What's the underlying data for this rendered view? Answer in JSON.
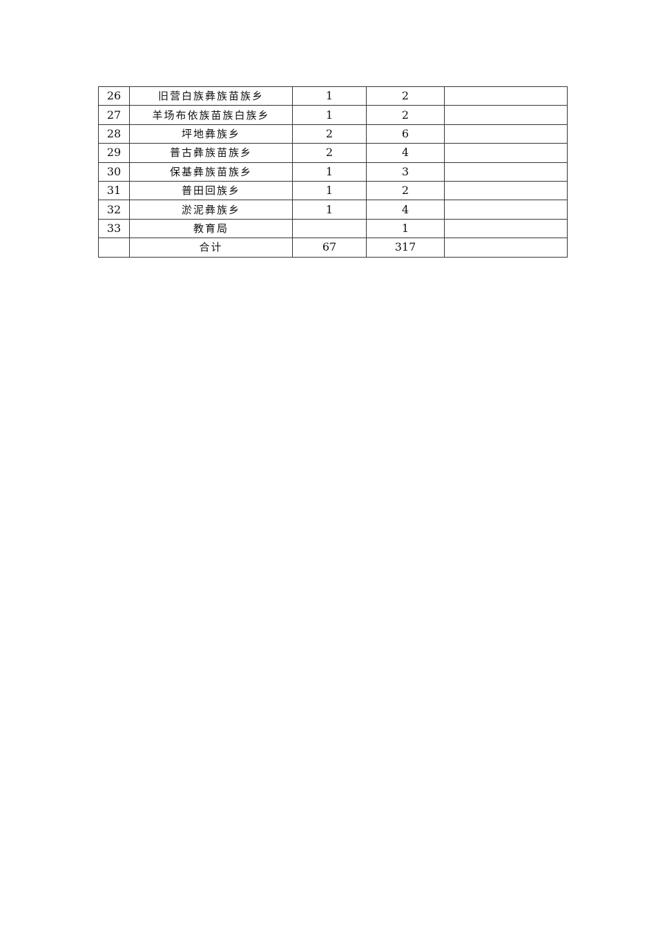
{
  "table": {
    "rows": [
      {
        "no": "26",
        "name": "旧营白族彝族苗族乡",
        "a": "1",
        "b": "2",
        "c": ""
      },
      {
        "no": "27",
        "name": "羊场布依族苗族白族乡",
        "a": "1",
        "b": "2",
        "c": ""
      },
      {
        "no": "28",
        "name": "坪地彝族乡",
        "a": "2",
        "b": "6",
        "c": ""
      },
      {
        "no": "29",
        "name": "普古彝族苗族乡",
        "a": "2",
        "b": "4",
        "c": ""
      },
      {
        "no": "30",
        "name": "保基彝族苗族乡",
        "a": "1",
        "b": "3",
        "c": ""
      },
      {
        "no": "31",
        "name": "普田回族乡",
        "a": "1",
        "b": "2",
        "c": ""
      },
      {
        "no": "32",
        "name": "淤泥彝族乡",
        "a": "1",
        "b": "4",
        "c": ""
      },
      {
        "no": "33",
        "name": "教育局",
        "a": "",
        "b": "1",
        "c": ""
      },
      {
        "no": "",
        "name": "合计",
        "a": "67",
        "b": "317",
        "c": ""
      }
    ]
  }
}
